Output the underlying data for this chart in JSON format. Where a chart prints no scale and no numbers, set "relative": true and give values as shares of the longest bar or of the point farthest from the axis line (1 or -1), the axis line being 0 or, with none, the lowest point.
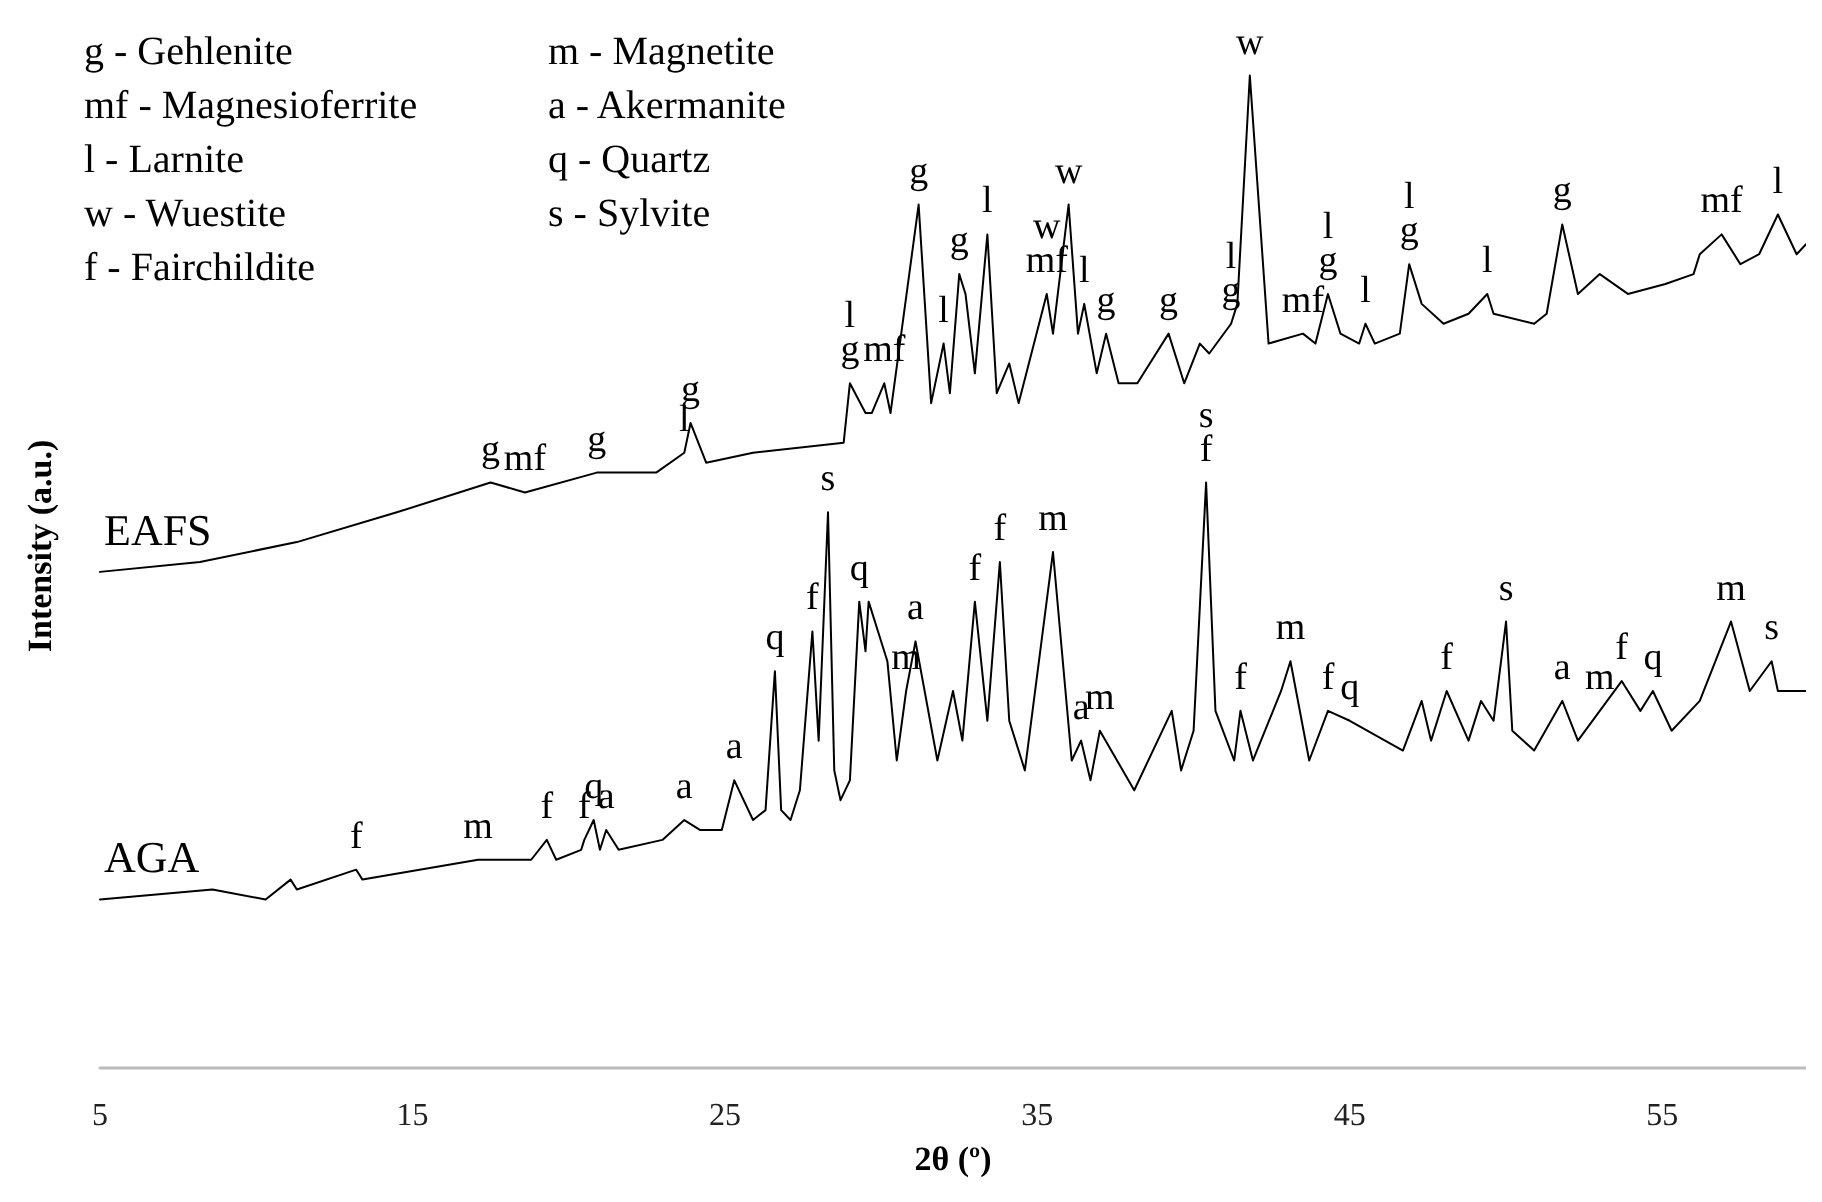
{
  "chart_data": {
    "type": "line",
    "relative": true,
    "xlabel": "2θ (º)",
    "ylabel": "Intensity (a.u.)",
    "xlim": [
      5,
      59.6
    ],
    "xticks": [
      5,
      15,
      25,
      35,
      45,
      55
    ],
    "series": [
      {
        "name": "EAFS",
        "color": "#000000",
        "x": [
          5.0,
          8.2,
          11.3,
          14.5,
          17.5,
          18.6,
          20.9,
          22.8,
          23.7,
          23.9,
          24.4,
          25.9,
          28.8,
          29.0,
          29.5,
          29.7,
          30.1,
          30.3,
          31.2,
          31.6,
          32.0,
          32.2,
          32.5,
          32.7,
          33.0,
          33.4,
          33.7,
          34.1,
          34.4,
          35.3,
          35.5,
          36.0,
          36.3,
          36.5,
          36.9,
          37.2,
          37.6,
          38.2,
          39.2,
          39.7,
          40.2,
          40.5,
          41.2,
          41.4,
          41.8,
          42.4,
          43.5,
          43.9,
          44.3,
          44.7,
          45.3,
          45.5,
          45.8,
          46.6,
          46.9,
          47.3,
          48.0,
          48.8,
          49.4,
          49.6,
          50.9,
          51.3,
          51.8,
          52.3,
          53.0,
          53.9,
          55.1,
          56.0,
          56.2,
          56.9,
          57.5,
          58.1,
          58.7,
          59.3,
          59.6
        ],
        "values": [
          0.5,
          0.51,
          0.53,
          0.56,
          0.59,
          0.58,
          0.6,
          0.6,
          0.62,
          0.65,
          0.61,
          0.62,
          0.63,
          0.69,
          0.66,
          0.66,
          0.69,
          0.66,
          0.87,
          0.67,
          0.73,
          0.68,
          0.8,
          0.78,
          0.7,
          0.84,
          0.68,
          0.71,
          0.67,
          0.78,
          0.74,
          0.87,
          0.74,
          0.77,
          0.7,
          0.74,
          0.69,
          0.69,
          0.74,
          0.69,
          0.73,
          0.72,
          0.75,
          0.77,
          1.0,
          0.73,
          0.74,
          0.73,
          0.78,
          0.74,
          0.73,
          0.75,
          0.73,
          0.74,
          0.81,
          0.77,
          0.75,
          0.76,
          0.78,
          0.76,
          0.75,
          0.76,
          0.85,
          0.78,
          0.8,
          0.78,
          0.79,
          0.8,
          0.82,
          0.84,
          0.81,
          0.82,
          0.86,
          0.82,
          0.83
        ]
      },
      {
        "name": "AGA",
        "color": "#000000",
        "x": [
          5.0,
          8.6,
          10.3,
          11.1,
          11.3,
          13.2,
          13.4,
          17.1,
          18.8,
          19.3,
          19.6,
          20.4,
          20.5,
          20.8,
          21.0,
          21.2,
          21.6,
          23.0,
          23.7,
          24.2,
          24.9,
          25.3,
          25.9,
          26.3,
          26.6,
          26.8,
          27.1,
          27.4,
          27.8,
          28.0,
          28.3,
          28.5,
          28.7,
          29.0,
          29.3,
          29.5,
          29.6,
          30.2,
          30.5,
          30.8,
          31.1,
          31.8,
          32.3,
          32.6,
          33.0,
          33.4,
          33.8,
          34.1,
          34.6,
          35.5,
          36.1,
          36.4,
          36.7,
          37.0,
          38.1,
          39.3,
          39.6,
          40.0,
          40.4,
          40.7,
          41.3,
          41.5,
          41.9,
          42.8,
          43.1,
          43.7,
          44.3,
          45.0,
          46.7,
          47.3,
          47.6,
          48.1,
          48.8,
          49.2,
          49.6,
          50.0,
          50.2,
          50.9,
          51.8,
          52.3,
          53.0,
          53.7,
          54.3,
          54.7,
          55.3,
          56.2,
          57.2,
          57.8,
          58.5,
          58.7,
          59.6
        ],
        "values": [
          0.17,
          0.18,
          0.17,
          0.19,
          0.18,
          0.2,
          0.19,
          0.21,
          0.21,
          0.23,
          0.21,
          0.22,
          0.23,
          0.25,
          0.22,
          0.24,
          0.22,
          0.23,
          0.25,
          0.24,
          0.24,
          0.29,
          0.25,
          0.26,
          0.4,
          0.26,
          0.25,
          0.28,
          0.44,
          0.33,
          0.56,
          0.3,
          0.27,
          0.29,
          0.47,
          0.42,
          0.47,
          0.41,
          0.31,
          0.38,
          0.43,
          0.31,
          0.38,
          0.33,
          0.47,
          0.35,
          0.51,
          0.35,
          0.3,
          0.52,
          0.31,
          0.33,
          0.29,
          0.34,
          0.28,
          0.36,
          0.3,
          0.34,
          0.59,
          0.36,
          0.31,
          0.36,
          0.31,
          0.38,
          0.41,
          0.31,
          0.36,
          0.35,
          0.32,
          0.37,
          0.33,
          0.38,
          0.33,
          0.37,
          0.35,
          0.45,
          0.34,
          0.32,
          0.37,
          0.33,
          0.36,
          0.39,
          0.36,
          0.38,
          0.34,
          0.37,
          0.45,
          0.38,
          0.41,
          0.38,
          0.38
        ]
      }
    ],
    "annotations": [
      "g - Gehlenite",
      "mf - Magnesioferrite",
      "l - Larnite",
      "w - Wuestite",
      "f - Fairchildite",
      "m - Magnetite",
      "a - Akermanite",
      "q - Quartz",
      "s - Sylvite",
      {
        "text": "g",
        "x": 17.5,
        "y": 0.59
      },
      {
        "text": "mf",
        "x": 18.6,
        "y": 0.58
      },
      {
        "text": "g",
        "x": 20.9,
        "y": 0.6
      },
      {
        "text": "l",
        "x": 23.7,
        "y": 0.62
      },
      {
        "text": "g",
        "x": 23.9,
        "y": 0.65
      },
      {
        "text": "g",
        "x": 29.0,
        "y": 0.69
      },
      {
        "text": "l",
        "x": 29.0,
        "y": 0.69
      },
      {
        "text": "mf",
        "x": 30.1,
        "y": 0.69
      },
      {
        "text": "g",
        "x": 31.2,
        "y": 0.87
      },
      {
        "text": "l",
        "x": 32.0,
        "y": 0.73
      },
      {
        "text": "g",
        "x": 32.5,
        "y": 0.8
      },
      {
        "text": "l",
        "x": 33.4,
        "y": 0.84
      },
      {
        "text": "mf",
        "x": 35.3,
        "y": 0.78
      },
      {
        "text": "w",
        "x": 35.3,
        "y": 0.78
      },
      {
        "text": "w",
        "x": 36.0,
        "y": 0.87
      },
      {
        "text": "l",
        "x": 36.5,
        "y": 0.77
      },
      {
        "text": "g",
        "x": 37.2,
        "y": 0.74
      },
      {
        "text": "g",
        "x": 39.2,
        "y": 0.74
      },
      {
        "text": "g",
        "x": 41.2,
        "y": 0.75
      },
      {
        "text": "l",
        "x": 41.2,
        "y": 0.75
      },
      {
        "text": "w",
        "x": 41.8,
        "y": 1.0
      },
      {
        "text": "mf",
        "x": 43.5,
        "y": 0.74
      },
      {
        "text": "g",
        "x": 44.3,
        "y": 0.78
      },
      {
        "text": "l",
        "x": 44.3,
        "y": 0.78
      },
      {
        "text": "l",
        "x": 45.5,
        "y": 0.75
      },
      {
        "text": "g",
        "x": 46.9,
        "y": 0.81
      },
      {
        "text": "l",
        "x": 46.9,
        "y": 0.81
      },
      {
        "text": "l",
        "x": 49.4,
        "y": 0.78
      },
      {
        "text": "g",
        "x": 51.8,
        "y": 0.85
      },
      {
        "text": "mf",
        "x": 56.9,
        "y": 0.84
      },
      {
        "text": "l",
        "x": 58.7,
        "y": 0.86
      },
      {
        "text": "f",
        "x": 13.2,
        "y": 0.2
      },
      {
        "text": "m",
        "x": 17.1,
        "y": 0.21
      },
      {
        "text": "f",
        "x": 19.3,
        "y": 0.23
      },
      {
        "text": "f",
        "x": 20.5,
        "y": 0.23
      },
      {
        "text": "q",
        "x": 20.8,
        "y": 0.25
      },
      {
        "text": "a",
        "x": 21.2,
        "y": 0.24
      },
      {
        "text": "a",
        "x": 23.7,
        "y": 0.25
      },
      {
        "text": "a",
        "x": 25.3,
        "y": 0.29
      },
      {
        "text": "q",
        "x": 26.6,
        "y": 0.4
      },
      {
        "text": "f",
        "x": 27.8,
        "y": 0.44
      },
      {
        "text": "s",
        "x": 28.3,
        "y": 0.56
      },
      {
        "text": "q",
        "x": 29.3,
        "y": 0.47
      },
      {
        "text": "m",
        "x": 30.8,
        "y": 0.38
      },
      {
        "text": "a",
        "x": 31.1,
        "y": 0.43
      },
      {
        "text": "f",
        "x": 33.0,
        "y": 0.47
      },
      {
        "text": "f",
        "x": 33.8,
        "y": 0.51
      },
      {
        "text": "m",
        "x": 35.5,
        "y": 0.52
      },
      {
        "text": "a",
        "x": 36.4,
        "y": 0.33
      },
      {
        "text": "m",
        "x": 37.0,
        "y": 0.34
      },
      {
        "text": "f",
        "x": 40.4,
        "y": 0.59
      },
      {
        "text": "s",
        "x": 40.4,
        "y": 0.59
      },
      {
        "text": "f",
        "x": 41.5,
        "y": 0.36
      },
      {
        "text": "m",
        "x": 43.1,
        "y": 0.41
      },
      {
        "text": "f",
        "x": 44.3,
        "y": 0.36
      },
      {
        "text": "q",
        "x": 45.0,
        "y": 0.35
      },
      {
        "text": "f",
        "x": 48.1,
        "y": 0.38
      },
      {
        "text": "s",
        "x": 50.0,
        "y": 0.45
      },
      {
        "text": "a",
        "x": 51.8,
        "y": 0.37
      },
      {
        "text": "m",
        "x": 53.0,
        "y": 0.36
      },
      {
        "text": "f",
        "x": 53.7,
        "y": 0.39
      },
      {
        "text": "q",
        "x": 54.7,
        "y": 0.38
      },
      {
        "text": "m",
        "x": 57.2,
        "y": 0.45
      },
      {
        "text": "s",
        "x": 58.5,
        "y": 0.41
      }
    ]
  }
}
